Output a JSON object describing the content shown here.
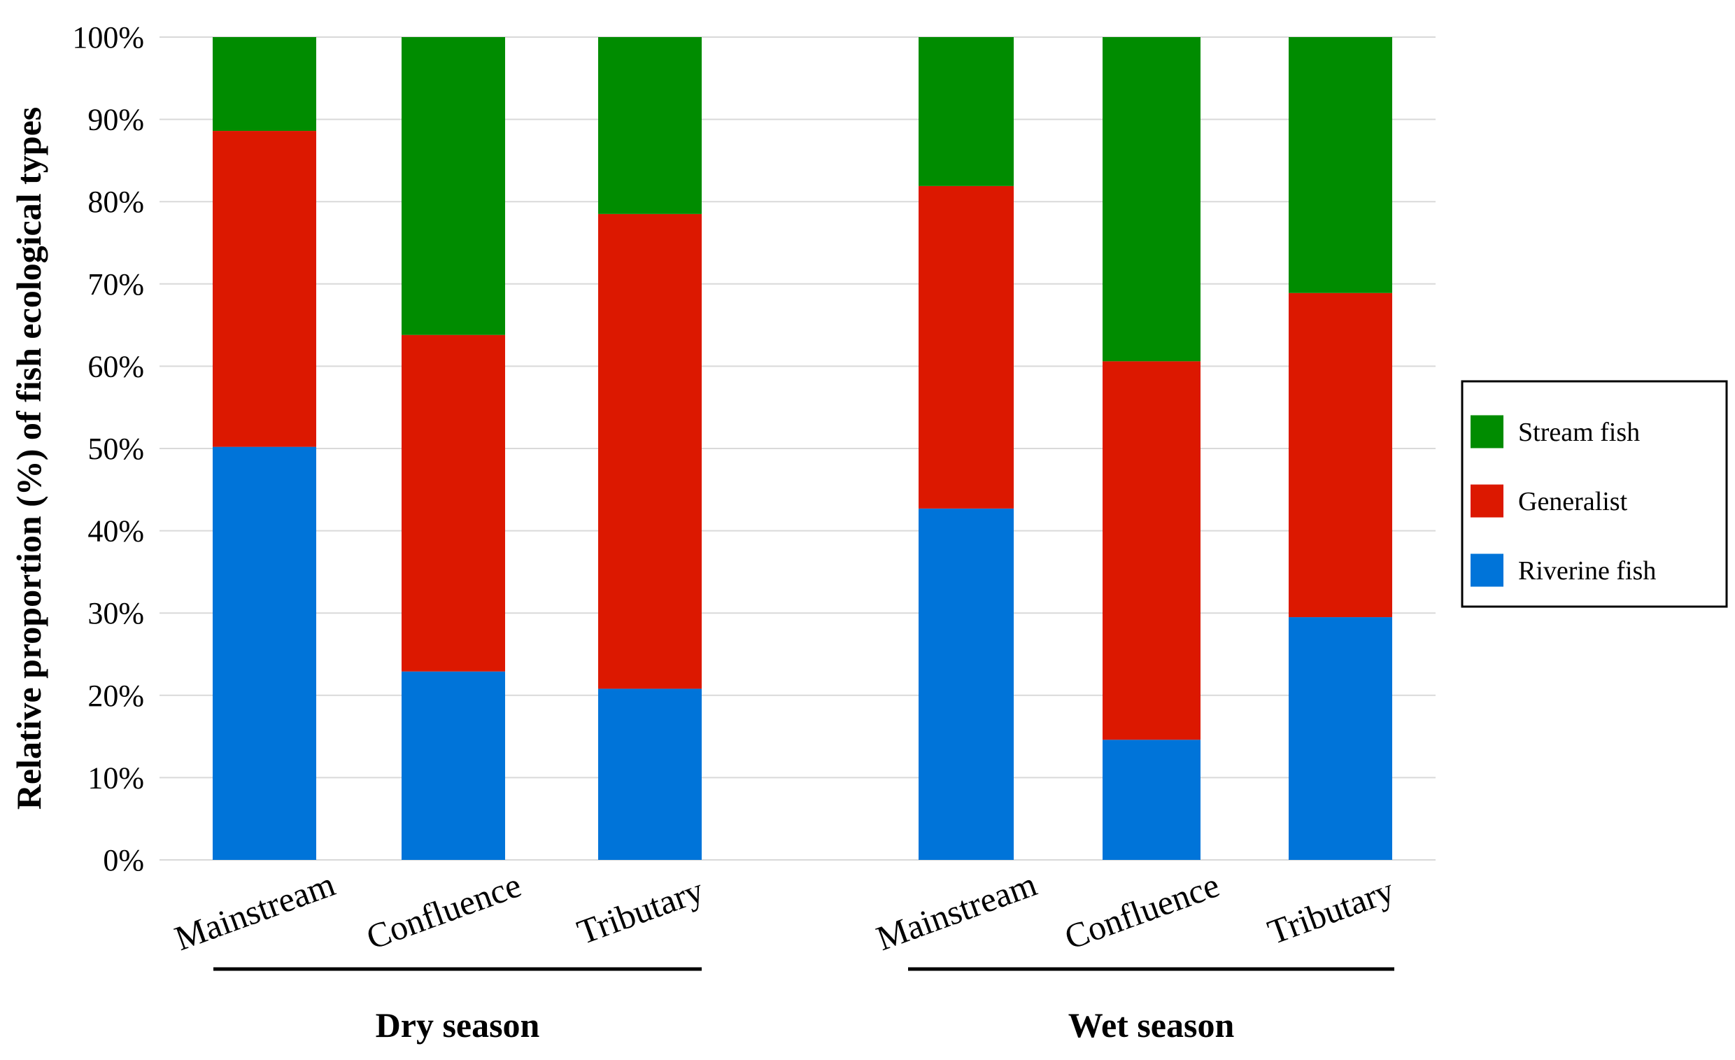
{
  "chart_data": {
    "type": "bar",
    "stacked": true,
    "percent": true,
    "ylabel": "Relative proportion (%) of fish ecological types",
    "xlabel": "",
    "ylim": [
      0,
      100
    ],
    "yticks": [
      "0%",
      "10%",
      "20%",
      "30%",
      "40%",
      "50%",
      "60%",
      "70%",
      "80%",
      "90%",
      "100%"
    ],
    "grid": true,
    "legend_position": "right",
    "groups": [
      {
        "label": "Dry season",
        "categories": [
          "Mainstream",
          "Confluence",
          "Tributary"
        ]
      },
      {
        "label": "Wet season",
        "categories": [
          "Mainstream",
          "Confluence",
          "Tributary"
        ]
      }
    ],
    "categories": [
      "Mainstream",
      "Confluence",
      "Tributary",
      "Mainstream",
      "Confluence",
      "Tributary"
    ],
    "series": [
      {
        "name": "Riverine fish",
        "color": "#0074D9",
        "values": [
          50.2,
          22.9,
          20.8,
          42.7,
          14.6,
          29.5
        ]
      },
      {
        "name": "Generalist",
        "color": "#DC1800",
        "values": [
          38.4,
          40.9,
          57.7,
          39.2,
          46.0,
          39.4
        ]
      },
      {
        "name": "Stream fish",
        "color": "#008C00",
        "values": [
          11.4,
          36.2,
          21.5,
          18.1,
          39.4,
          31.1
        ]
      }
    ],
    "legend_order": [
      "Stream fish",
      "Generalist",
      "Riverine fish"
    ]
  }
}
